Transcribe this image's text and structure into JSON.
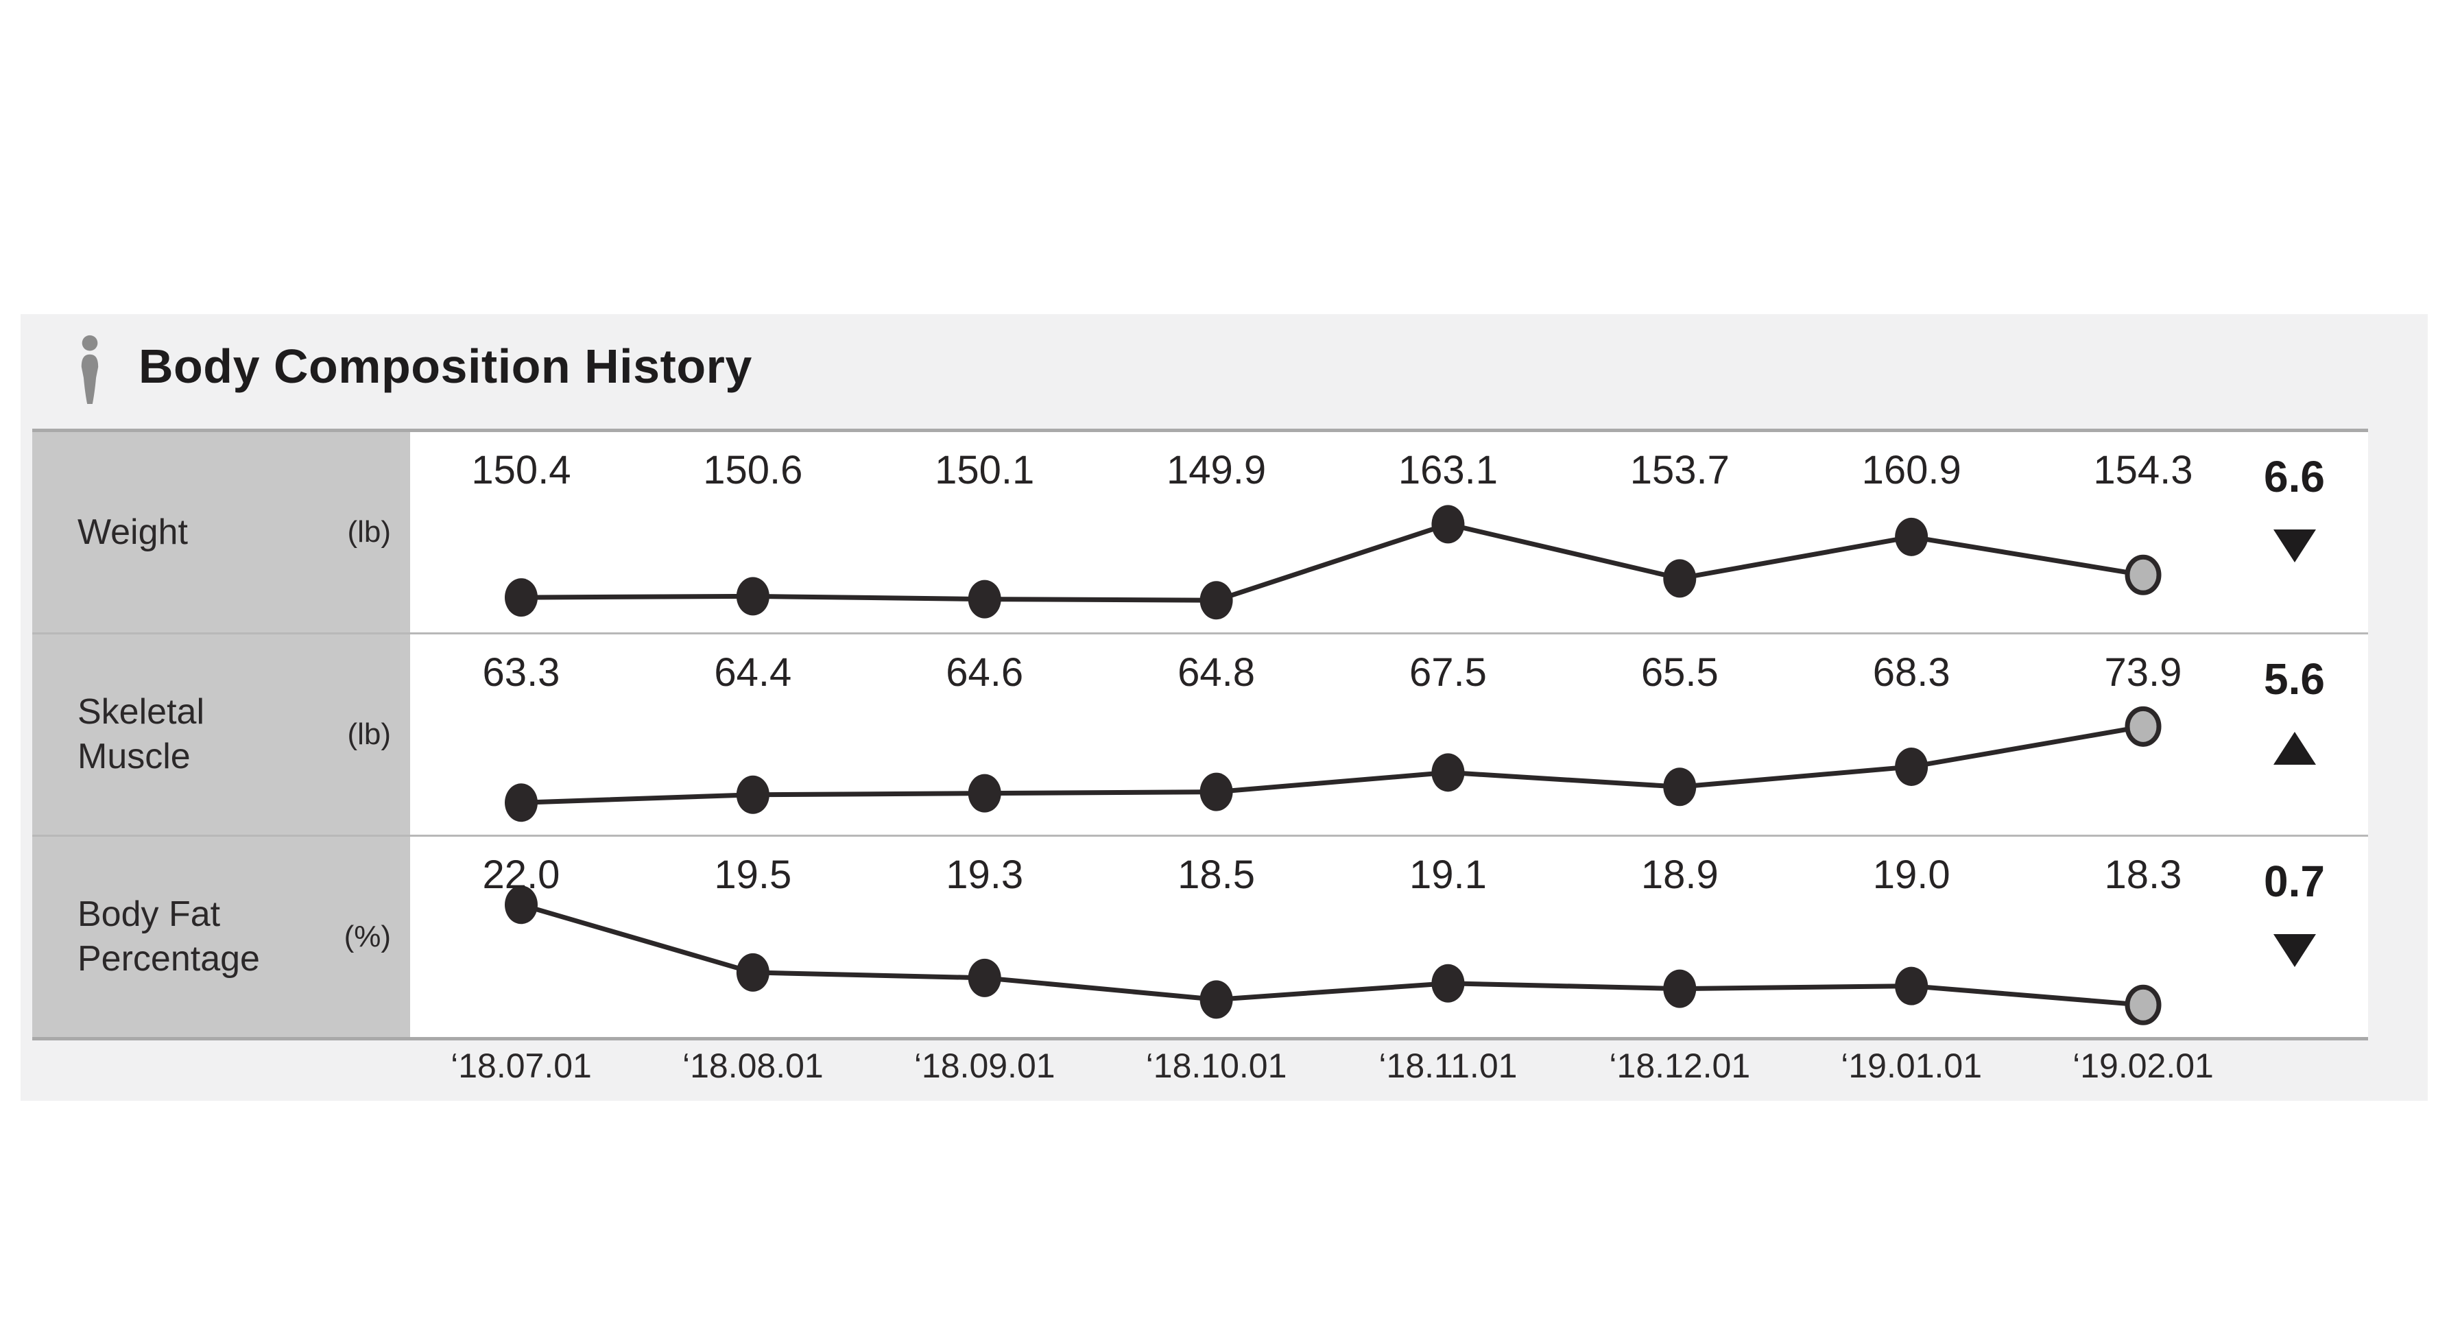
{
  "header": {
    "title": "Body Composition History",
    "icon": "person-icon"
  },
  "chart_data": {
    "type": "line",
    "x": [
      "‘18.07.01",
      "‘18.08.01",
      "‘18.09.01",
      "‘18.10.01",
      "‘18.11.01",
      "‘18.12.01",
      "‘19.01.01",
      "‘19.02.01"
    ],
    "series": [
      {
        "name": "Weight",
        "unit": "(lb)",
        "values": [
          150.4,
          150.6,
          150.1,
          149.9,
          163.1,
          153.7,
          160.9,
          154.3
        ],
        "labels": [
          "150.4",
          "150.6",
          "150.1",
          "149.9",
          "163.1",
          "153.7",
          "160.9",
          "154.3"
        ],
        "change": {
          "value": "6.6",
          "direction": "down"
        }
      },
      {
        "name": "Skeletal Muscle",
        "unit": "(lb)",
        "values": [
          63.3,
          64.4,
          64.6,
          64.8,
          67.5,
          65.5,
          68.3,
          73.9
        ],
        "labels": [
          "63.3",
          "64.4",
          "64.6",
          "64.8",
          "67.5",
          "65.5",
          "68.3",
          "73.9"
        ],
        "change": {
          "value": "5.6",
          "direction": "up"
        }
      },
      {
        "name": "Body Fat Percentage",
        "unit": "(%)",
        "values": [
          22.0,
          19.5,
          19.3,
          18.5,
          19.1,
          18.9,
          19.0,
          18.3
        ],
        "labels": [
          "22.0",
          "19.5",
          "19.3",
          "18.5",
          "19.1",
          "18.9",
          "19.0",
          "18.3"
        ],
        "change": {
          "value": "0.7",
          "direction": "down"
        }
      }
    ],
    "grid": false,
    "legend_position": "left-row-labels",
    "highlight": "last-point",
    "colors": {
      "line": "#2b2728",
      "point": "#2b2728",
      "last_point_fill": "#b5b5b5",
      "row_label_bg": "#c8c8c8",
      "panel_bg": "#f1f1f2",
      "row_bg": "#ffffff",
      "divider": "#b3b3b3",
      "text": "#262324",
      "icon": "#8b8b8b"
    }
  }
}
